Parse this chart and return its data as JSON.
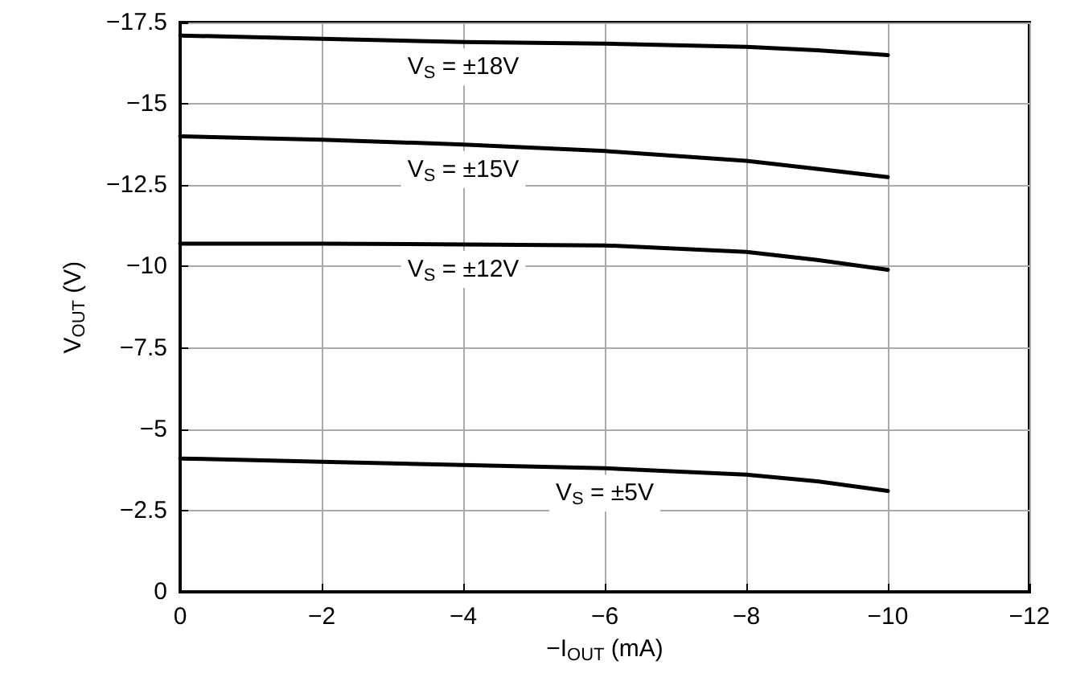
{
  "chart_data": {
    "type": "line",
    "xlabel": "−I$_{OUT}$ (mA)",
    "ylabel": "V$_{OUT}$ (V)",
    "xlim": [
      0,
      -12
    ],
    "xticks": [
      0,
      -2,
      -4,
      -6,
      -8,
      -10,
      -12
    ],
    "ylim": [
      0,
      -17.5
    ],
    "yticks": [
      0,
      -2.5,
      -5,
      -7.5,
      -10,
      -12.5,
      -15,
      -17.5
    ],
    "grid": true,
    "marker": "none",
    "line_style": "solid",
    "legend": false,
    "x": [
      0,
      -2,
      -4,
      -6,
      -8,
      -9,
      -10
    ],
    "series": [
      {
        "name": "V$_{S}$ = ±18V",
        "color": "#000000",
        "values": [
          -17.1,
          -17.0,
          -16.9,
          -16.85,
          -16.75,
          -16.65,
          -16.5
        ]
      },
      {
        "name": "V$_{S}$ = ±15V",
        "color": "#000000",
        "values": [
          -14.0,
          -13.9,
          -13.75,
          -13.55,
          -13.25,
          -13.0,
          -12.75
        ]
      },
      {
        "name": "V$_{S}$ = ±12V",
        "color": "#000000",
        "values": [
          -10.7,
          -10.7,
          -10.68,
          -10.65,
          -10.45,
          -10.2,
          -9.9
        ]
      },
      {
        "name": "V$_{S}$ = ±5V",
        "color": "#000000",
        "values": [
          -4.1,
          -4.0,
          -3.9,
          -3.8,
          -3.6,
          -3.4,
          -3.1
        ]
      }
    ]
  }
}
